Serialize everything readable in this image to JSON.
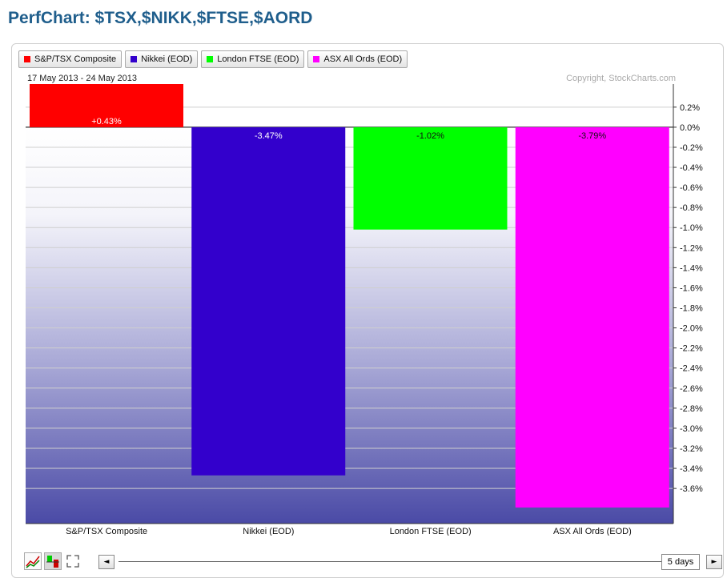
{
  "title": "PerfChart: $TSX,$NIKK,$FTSE,$AORD",
  "legend": [
    {
      "label": "S&P/TSX Composite",
      "color": "#ff0000"
    },
    {
      "label": "Nikkei (EOD)",
      "color": "#3300cc"
    },
    {
      "label": "London FTSE (EOD)",
      "color": "#00ff00"
    },
    {
      "label": "ASX All Ords (EOD)",
      "color": "#ff00ff"
    }
  ],
  "date_range": "17 May 2013 - 24 May 2013",
  "copyright": "Copyright, StockCharts.com",
  "controls": {
    "period": "5 days",
    "left_arrow": "◄",
    "right_arrow": "►"
  },
  "chart_data": {
    "type": "bar",
    "categories": [
      "S&P/TSX Composite",
      "Nikkei (EOD)",
      "London FTSE (EOD)",
      "ASX All Ords (EOD)"
    ],
    "values": [
      0.43,
      -3.47,
      -1.02,
      -3.79
    ],
    "value_labels": [
      "+0.43%",
      "-3.47%",
      "-1.02%",
      "-3.79%"
    ],
    "colors": [
      "#ff0000",
      "#3300cc",
      "#00ff00",
      "#ff00ff"
    ],
    "label_colors": [
      "#ffffff",
      "#ffffff",
      "#111111",
      "#111111"
    ],
    "ylim": [
      -3.95,
      0.43
    ],
    "yticks": [
      0.2,
      0.0,
      -0.2,
      -0.4,
      -0.6,
      -0.8,
      -1.0,
      -1.2,
      -1.4,
      -1.6,
      -1.8,
      -2.0,
      -2.2,
      -2.4,
      -2.6,
      -2.8,
      -3.0,
      -3.2,
      -3.4,
      -3.6
    ],
    "ytick_labels": [
      "0.2%",
      "0.0%",
      "-0.2%",
      "-0.4%",
      "-0.6%",
      "-0.8%",
      "-1.0%",
      "-1.2%",
      "-1.4%",
      "-1.6%",
      "-1.8%",
      "-2.0%",
      "-2.2%",
      "-2.4%",
      "-2.6%",
      "-2.8%",
      "-3.0%",
      "-3.2%",
      "-3.4%",
      "-3.6%"
    ],
    "y_axis_position": "right",
    "grid": true,
    "legend_position": "top-left"
  }
}
